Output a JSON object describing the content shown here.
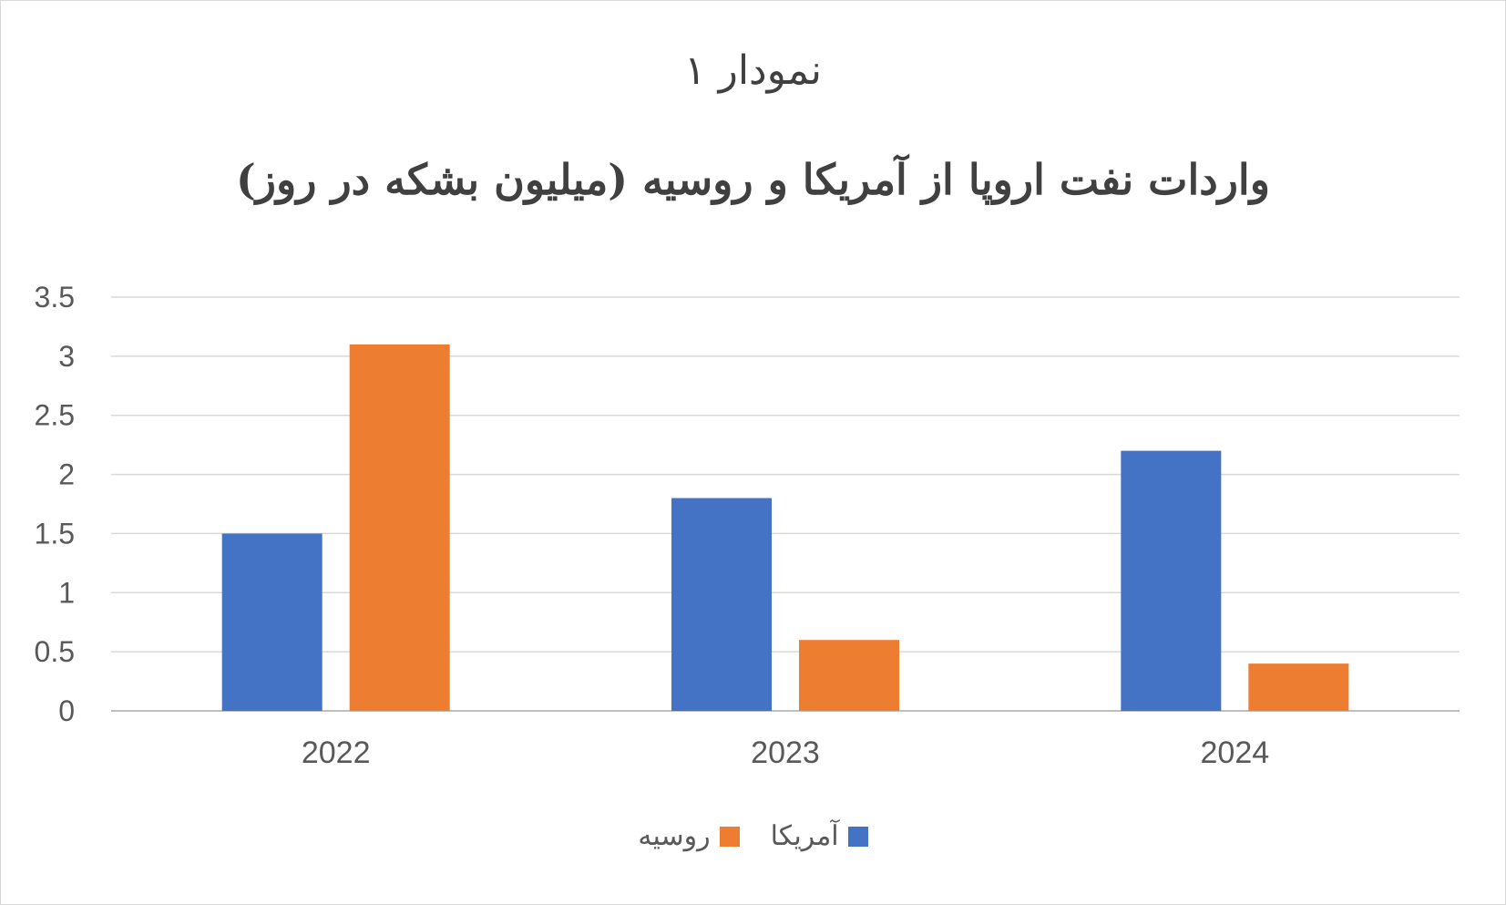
{
  "chart_data": {
    "type": "bar",
    "subtitle": "نمودار ۱",
    "title": "واردات نفت اروپا  از آمریکا و روسیه (میلیون بشکه در روز)",
    "categories": [
      "2022",
      "2023",
      "2024"
    ],
    "series": [
      {
        "name": "آمریکا",
        "color": "#4472C4",
        "values": [
          1.5,
          1.8,
          2.2
        ]
      },
      {
        "name": "روسیه",
        "color": "#ED7D31",
        "values": [
          3.1,
          0.6,
          0.4
        ]
      }
    ],
    "ylim": [
      0,
      3.5
    ],
    "yticks": [
      "0",
      "0.5",
      "1",
      "1.5",
      "2",
      "2.5",
      "3",
      "3.5"
    ],
    "grid": true,
    "legend_position": "bottom"
  }
}
